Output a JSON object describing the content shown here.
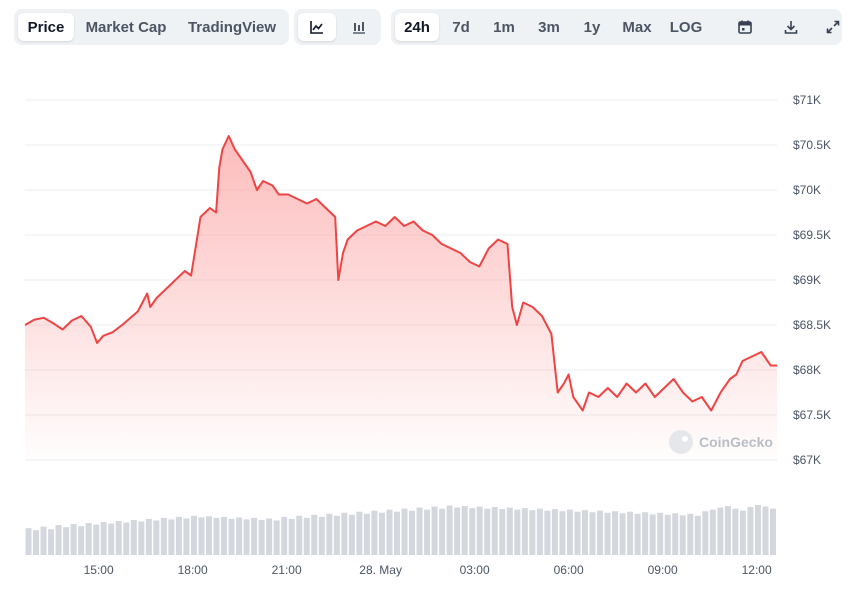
{
  "toolbar": {
    "view_tabs": [
      "Price",
      "Market Cap",
      "TradingView"
    ],
    "active_view": "Price",
    "chart_type_icons": [
      "line-chart-icon",
      "candlestick-chart-icon"
    ],
    "active_chart_type": "line-chart-icon",
    "ranges": [
      "24h",
      "7d",
      "1m",
      "3m",
      "1y",
      "Max",
      "LOG"
    ],
    "active_range": "24h",
    "action_icons": [
      "calendar-icon",
      "download-icon",
      "expand-icon"
    ]
  },
  "watermark": "CoinGecko",
  "colors": {
    "line": "#ef4444",
    "fill_top": "#fca5a5",
    "grid": "#e9ecef",
    "volume": "#d4d8de"
  },
  "chart_data": {
    "type": "area",
    "title": "",
    "xlabel": "",
    "ylabel": "",
    "ylim": [
      67000,
      71000
    ],
    "y_ticks": [
      67000,
      67500,
      68000,
      68500,
      69000,
      69500,
      70000,
      70500,
      71000
    ],
    "y_tick_labels": [
      "$67K",
      "$67.5K",
      "$68K",
      "$68.5K",
      "$69K",
      "$69.5K",
      "$70K",
      "$70.5K",
      "$71K"
    ],
    "x_range_hours": [
      0,
      24
    ],
    "x_ticks": [
      2.35,
      5.35,
      8.35,
      11.35,
      14.35,
      17.35,
      20.35,
      23.35
    ],
    "x_tick_labels": [
      "15:00",
      "18:00",
      "21:00",
      "28. May",
      "03:00",
      "06:00",
      "09:00",
      "12:00"
    ],
    "series": [
      {
        "x": [
          0.0,
          0.3,
          0.6,
          0.9,
          1.2,
          1.5,
          1.8,
          2.1,
          2.3,
          2.5,
          2.8,
          3.1,
          3.3,
          3.6,
          3.9,
          4.0,
          4.2,
          4.5,
          4.8,
          5.1,
          5.3,
          5.6,
          5.9,
          6.1,
          6.2,
          6.3,
          6.5,
          6.7,
          6.8,
          7.0,
          7.2,
          7.4,
          7.6,
          7.9,
          8.1,
          8.4,
          8.7,
          9.0,
          9.3,
          9.6,
          9.9,
          10.0,
          10.15,
          10.3,
          10.6,
          10.9,
          11.2,
          11.5,
          11.8,
          12.1,
          12.4,
          12.7,
          13.0,
          13.3,
          13.6,
          13.9,
          14.2,
          14.5,
          14.8,
          15.1,
          15.4,
          15.55,
          15.7,
          15.9,
          16.2,
          16.5,
          16.8,
          17.0,
          17.2,
          17.35,
          17.5,
          17.8,
          18.0,
          18.3,
          18.6,
          18.9,
          19.2,
          19.5,
          19.8,
          20.1,
          20.4,
          20.7,
          21.0,
          21.3,
          21.6,
          21.9,
          22.2,
          22.5,
          22.7,
          22.9,
          23.2,
          23.5,
          23.8,
          24.0
        ],
        "values": [
          68500,
          68560,
          68580,
          68520,
          68450,
          68550,
          68600,
          68480,
          68300,
          68380,
          68420,
          68500,
          68560,
          68650,
          68850,
          68700,
          68800,
          68900,
          69000,
          69100,
          69050,
          69700,
          69800,
          69750,
          70250,
          70450,
          70600,
          70450,
          70400,
          70300,
          70200,
          70000,
          70100,
          70050,
          69950,
          69950,
          69900,
          69850,
          69900,
          69800,
          69700,
          69000,
          69300,
          69450,
          69550,
          69600,
          69650,
          69600,
          69700,
          69600,
          69650,
          69550,
          69500,
          69400,
          69350,
          69300,
          69200,
          69150,
          69350,
          69450,
          69400,
          68700,
          68500,
          68750,
          68700,
          68600,
          68400,
          67750,
          67850,
          67950,
          67700,
          67550,
          67750,
          67700,
          67800,
          67700,
          67850,
          67750,
          67850,
          67700,
          67800,
          67900,
          67750,
          67650,
          67700,
          67550,
          67750,
          67900,
          67950,
          68100,
          68150,
          68200,
          68050,
          68050
        ]
      }
    ],
    "volume": [
      52,
      48,
      55,
      50,
      58,
      54,
      60,
      56,
      62,
      59,
      64,
      61,
      66,
      63,
      68,
      65,
      70,
      67,
      72,
      69,
      74,
      71,
      76,
      73,
      75,
      72,
      74,
      70,
      73,
      69,
      72,
      68,
      71,
      67,
      74,
      70,
      76,
      72,
      78,
      74,
      80,
      76,
      82,
      78,
      84,
      80,
      86,
      82,
      88,
      84,
      90,
      86,
      92,
      88,
      94,
      90,
      96,
      92,
      95,
      91,
      94,
      90,
      93,
      89,
      92,
      88,
      91,
      87,
      90,
      86,
      89,
      85,
      88,
      84,
      87,
      83,
      86,
      82,
      85,
      81,
      84,
      80,
      83,
      79,
      82,
      78,
      81,
      77,
      80,
      76,
      85,
      88,
      92,
      95,
      90,
      86,
      93,
      97,
      94,
      90
    ]
  }
}
